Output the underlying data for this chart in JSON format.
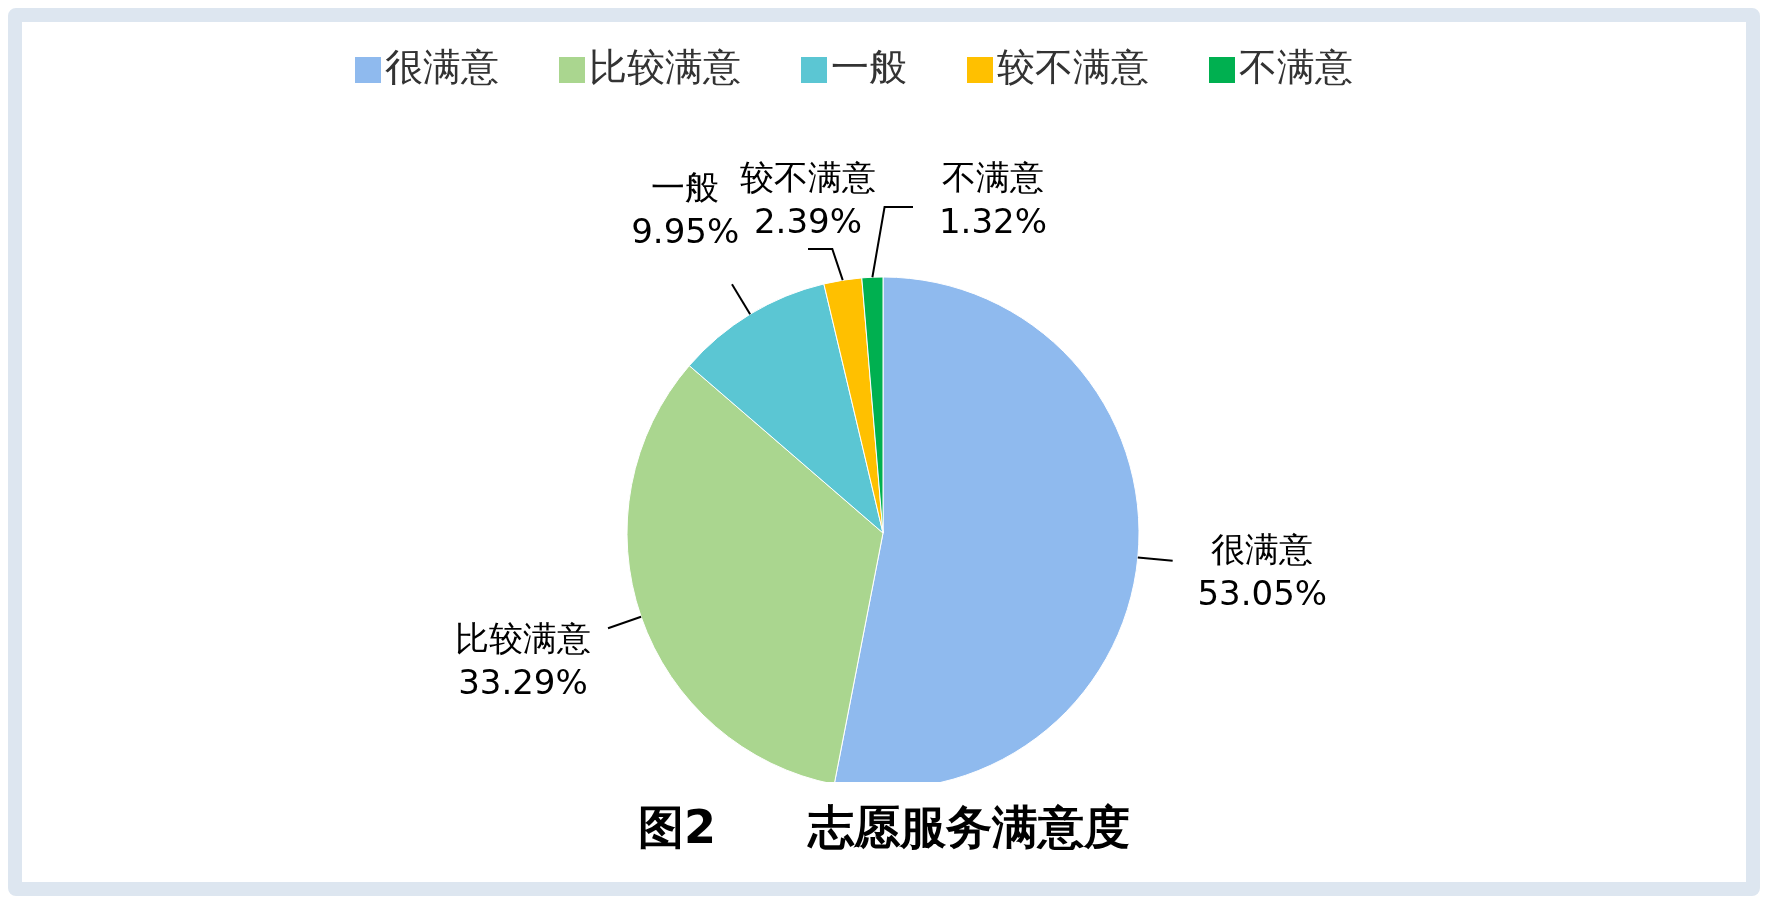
{
  "chart_data": {
    "type": "pie",
    "title": "图2　　志愿服务满意度",
    "categories": [
      "很满意",
      "比较满意",
      "一般",
      "较不满意",
      "不满意"
    ],
    "values": [
      53.05,
      33.29,
      9.95,
      2.39,
      1.32
    ],
    "value_labels": [
      "53.05%",
      "33.29%",
      "9.95%",
      "2.39%",
      "1.32%"
    ],
    "colors": [
      "#8fbaee",
      "#aad68f",
      "#5bc6d3",
      "#ffc000",
      "#00b050"
    ],
    "legend": "top"
  }
}
